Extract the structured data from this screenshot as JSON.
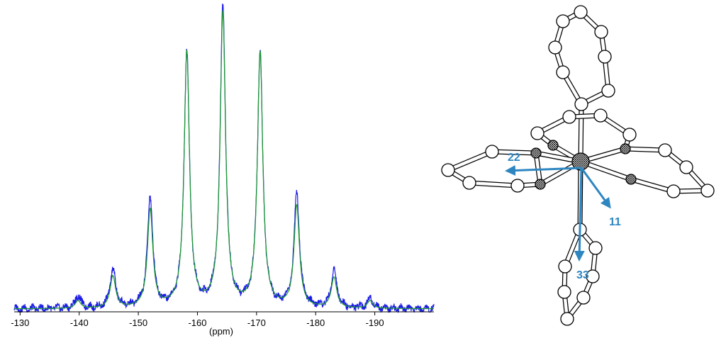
{
  "chart_data": {
    "type": "line",
    "xlabel": "(ppm)",
    "xlim": [
      -129,
      -200
    ],
    "x_tick_values": [
      -130,
      -140,
      -150,
      -160,
      -170,
      -180,
      -190
    ],
    "x_tick_labels": [
      "-130",
      "-140",
      "-150",
      "-160",
      "-170",
      "-180",
      "-190"
    ],
    "ylim": [
      0,
      100
    ],
    "grid": false,
    "legend": "none",
    "series": [
      {
        "color": "#1a1ae6",
        "peaks": [
          {
            "x": -139.8,
            "y": 4.2
          },
          {
            "x": -145.7,
            "y": 12.9
          },
          {
            "x": -152.0,
            "y": 36.7
          },
          {
            "x": -158.2,
            "y": 84.6
          },
          {
            "x": -164.3,
            "y": 100
          },
          {
            "x": -170.6,
            "y": 84.4
          },
          {
            "x": -176.8,
            "y": 38.2
          },
          {
            "x": -183.1,
            "y": 12.6
          },
          {
            "x": -189.2,
            "y": 3.5
          }
        ]
      },
      {
        "color": "#1a9a2a",
        "peaks": [
          {
            "x": -139.8,
            "y": 2.5
          },
          {
            "x": -145.7,
            "y": 10.6
          },
          {
            "x": -152.0,
            "y": 32.4
          },
          {
            "x": -158.2,
            "y": 84.6
          },
          {
            "x": -164.3,
            "y": 97.4
          },
          {
            "x": -170.6,
            "y": 84.4
          },
          {
            "x": -176.8,
            "y": 33.6
          },
          {
            "x": -183.1,
            "y": 10.1
          },
          {
            "x": -189.2,
            "y": 2.5
          }
        ]
      }
    ]
  },
  "structure": {
    "tensor_color": "#2e86c1",
    "tensor_labels": {
      "d22": "22",
      "d11": "11",
      "d33": "33"
    }
  }
}
